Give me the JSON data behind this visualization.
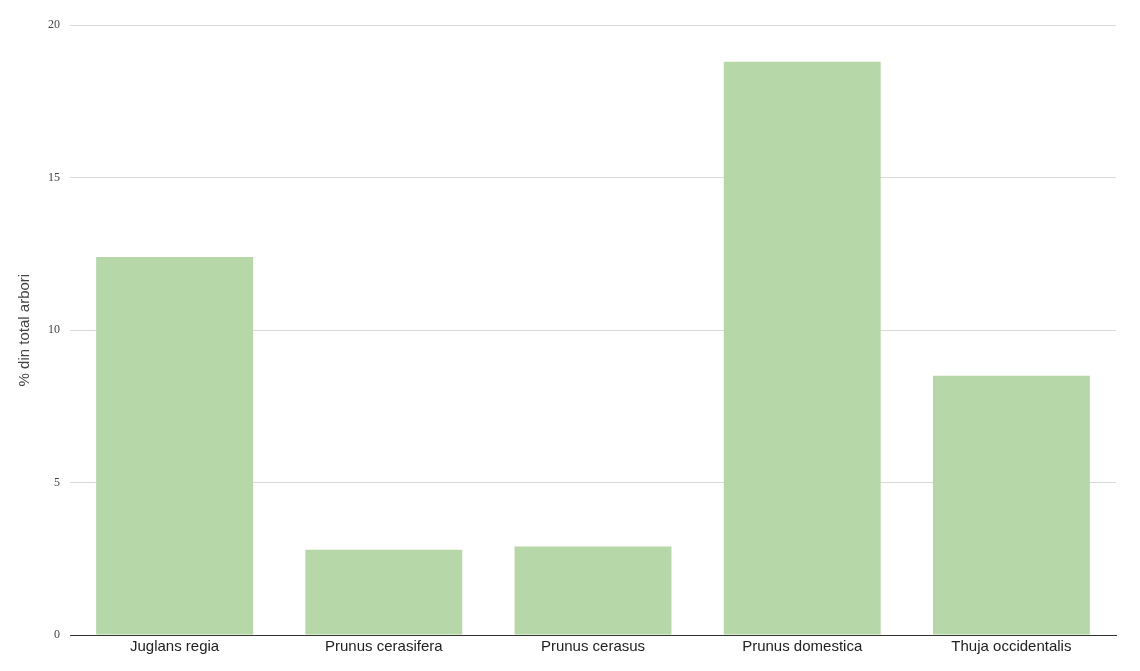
{
  "chart_data": {
    "type": "bar",
    "ylabel": "% din total arbori",
    "categories": [
      "Juglans regia",
      "Prunus cerasifera",
      "Prunus cerasus",
      "Prunus domestica",
      "Thuja occidentalis"
    ],
    "values": [
      12.4,
      2.8,
      2.9,
      18.8,
      8.5
    ],
    "color": "#b6d7a8",
    "ylim": [
      0,
      20
    ],
    "yticks": [
      0,
      5,
      10,
      15,
      20
    ],
    "grid": "y",
    "legend": false
  }
}
